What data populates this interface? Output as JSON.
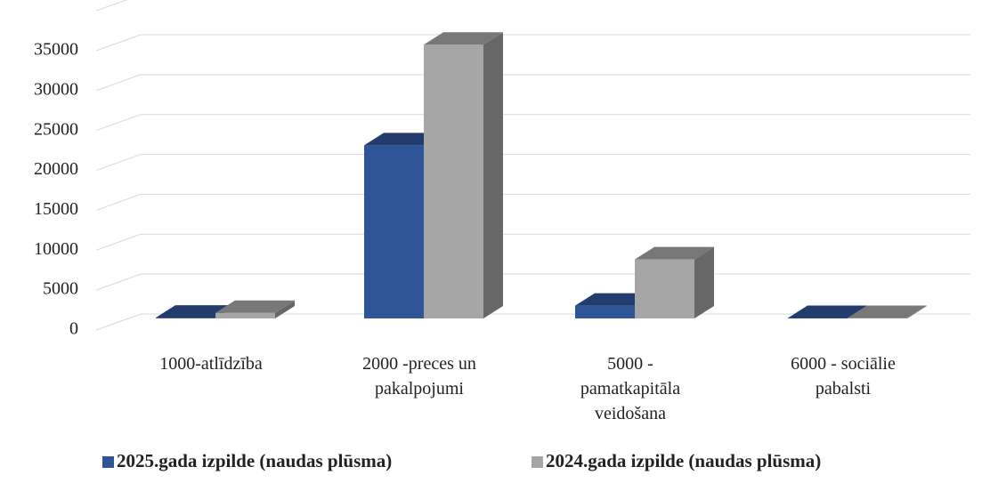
{
  "chart_data": {
    "type": "bar3d",
    "categories": [
      "1000-atlīdzība",
      "2000 -preces un pakalpojumi",
      "5000 - pamatkapitāla veidošana",
      "6000 - sociālie pabalsti"
    ],
    "series": [
      {
        "name": "2025.gada izpilde (naudas plūsma)",
        "color": "#2f5597",
        "values": [
          100,
          21700,
          1600,
          50
        ]
      },
      {
        "name": "2024.gada izpilde (naudas plūsma)",
        "color": "#a6a6a6",
        "values": [
          700,
          34300,
          7400,
          50
        ]
      }
    ],
    "ylim": [
      0,
      40000
    ],
    "yticks": [
      0,
      5000,
      10000,
      15000,
      20000,
      25000,
      30000,
      35000
    ],
    "grid": true,
    "legend": "bottom"
  }
}
